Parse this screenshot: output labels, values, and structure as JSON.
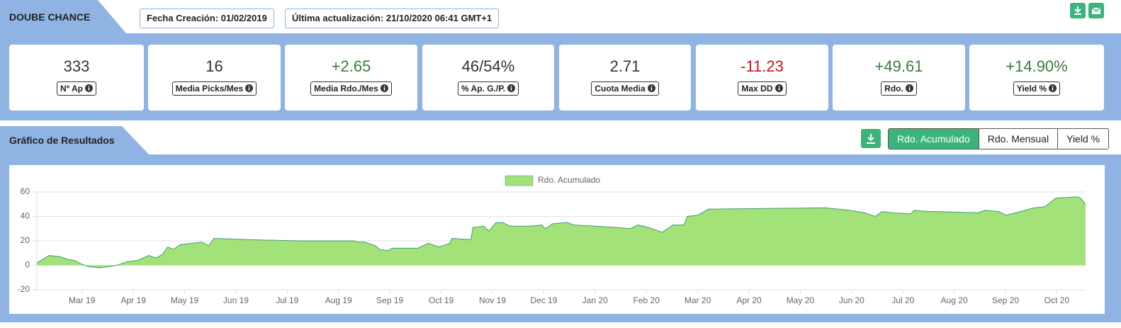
{
  "header": {
    "title": "DOUBE CHANCE",
    "created": "Fecha Creación: 01/02/2019",
    "updated": "Última actualización: 21/10/2020 06:41 GMT+1"
  },
  "stats": [
    {
      "value": "333",
      "label": "Nº Ap",
      "color": "#333333"
    },
    {
      "value": "16",
      "label": "Media Picks/Mes",
      "color": "#333333"
    },
    {
      "value": "+2.65",
      "label": "Media Rdo./Mes",
      "color": "#3a7d3a"
    },
    {
      "value": "46/54%",
      "label": "% Ap. G./P.",
      "color": "#333333"
    },
    {
      "value": "2.71",
      "label": "Cuota Media",
      "color": "#333333"
    },
    {
      "value": "-11.23",
      "label": "Max DD",
      "color": "#d0121b"
    },
    {
      "value": "+49.61",
      "label": "Rdo.",
      "color": "#3a7d3a"
    },
    {
      "value": "+14.90%",
      "label": "Yield %",
      "color": "#3a7d3a"
    }
  ],
  "section_title": "Gráfico de Resultados",
  "tabs": [
    "Rdo. Acumulado",
    "Rdo. Mensual",
    "Yield %"
  ],
  "chart_data": {
    "type": "area",
    "x": [
      0.12,
      0.36,
      0.57,
      0.71,
      0.85,
      0.99,
      1.12,
      1.33,
      1.54,
      1.68,
      1.88,
      2.09,
      2.3,
      2.44,
      2.57,
      2.67,
      2.78,
      2.92,
      3.13,
      3.34,
      3.47,
      3.57,
      4.23,
      5.2,
      6.3,
      6.37,
      6.51,
      6.72,
      6.8,
      6.97,
      7.04,
      7.55,
      7.75,
      7.96,
      8.17,
      8.21,
      8.58,
      8.62,
      8.83,
      8.93,
      9.07,
      9.2,
      9.34,
      9.76,
      9.96,
      10.03,
      10.17,
      10.45,
      10.59,
      11.0,
      11.41,
      11.69,
      11.83,
      12.04,
      12.31,
      12.45,
      12.52,
      12.73,
      12.8,
      13.0,
      13.21,
      15.49,
      15.97,
      16.25,
      16.46,
      16.59,
      16.8,
      17.15,
      17.22,
      17.49,
      17.63,
      18.46,
      18.6,
      18.87,
      19.01,
      19.29,
      19.56,
      19.77,
      19.98,
      20.39,
      20.46,
      20.56
    ],
    "series": [
      {
        "name": "Rdo. Acumulado",
        "color": "#a3e278",
        "line_color": "#3f9c72",
        "values": [
          2,
          8,
          7,
          5,
          4,
          1,
          -1,
          -2,
          -1,
          0,
          3,
          4,
          8,
          6,
          9,
          15,
          13,
          17,
          18,
          19,
          16,
          22,
          21,
          20,
          20,
          19,
          19,
          16,
          13,
          12,
          14,
          14,
          18,
          15,
          18,
          22,
          21,
          31,
          32,
          28,
          35,
          35,
          32,
          32,
          33,
          30,
          34,
          35,
          33,
          32,
          31,
          30,
          33,
          31,
          27,
          31,
          33,
          33,
          40,
          41,
          46,
          47,
          45,
          43,
          40,
          44,
          43,
          42,
          45,
          44,
          44,
          43,
          45,
          44,
          41,
          44,
          47,
          48,
          55,
          56,
          55,
          50
        ]
      }
    ],
    "xlim": [
      0.12,
      20.56
    ],
    "xticks": [
      {
        "value": 1,
        "label": "Mar 19"
      },
      {
        "value": 2,
        "label": "Apr 19"
      },
      {
        "value": 3,
        "label": "May 19"
      },
      {
        "value": 4,
        "label": "Jun 19"
      },
      {
        "value": 5,
        "label": "Jul 19"
      },
      {
        "value": 6,
        "label": "Aug 19"
      },
      {
        "value": 7,
        "label": "Sep 19"
      },
      {
        "value": 8,
        "label": "Oct 19"
      },
      {
        "value": 9,
        "label": "Nov 19"
      },
      {
        "value": 10,
        "label": "Dec 19"
      },
      {
        "value": 11,
        "label": "Jan 20"
      },
      {
        "value": 12,
        "label": "Feb 20"
      },
      {
        "value": 13,
        "label": "Mar 20"
      },
      {
        "value": 14,
        "label": "Apr 20"
      },
      {
        "value": 15,
        "label": "May 20"
      },
      {
        "value": 16,
        "label": "Jun 20"
      },
      {
        "value": 17,
        "label": "Jul 20"
      },
      {
        "value": 18,
        "label": "Aug 20"
      },
      {
        "value": 19,
        "label": "Sep 20"
      },
      {
        "value": 20,
        "label": "Oct 20"
      }
    ],
    "ylim": [
      -20,
      60
    ],
    "yticks": [
      -20,
      0,
      20,
      40,
      60
    ],
    "grid": true
  }
}
